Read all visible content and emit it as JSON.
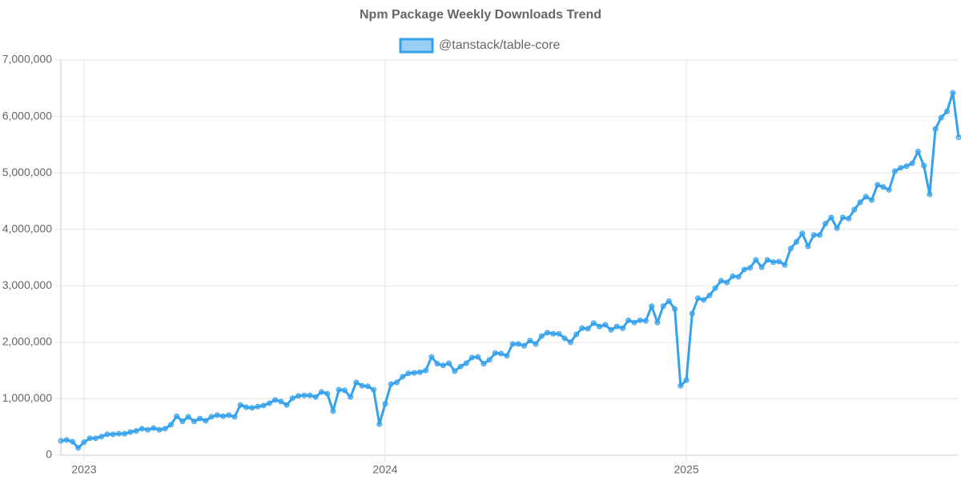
{
  "chart_data": {
    "type": "line",
    "title": "Npm Package Weekly Downloads Trend",
    "categories": [
      null,
      null,
      null,
      null,
      "2023",
      null,
      null,
      null,
      null,
      null,
      null,
      null,
      null,
      null,
      null,
      null,
      null,
      null,
      null,
      null,
      null,
      null,
      null,
      null,
      null,
      null,
      null,
      null,
      null,
      null,
      null,
      null,
      null,
      null,
      null,
      null,
      null,
      null,
      null,
      null,
      null,
      null,
      null,
      null,
      null,
      null,
      null,
      null,
      null,
      null,
      null,
      null,
      null,
      null,
      null,
      null,
      "2024",
      null,
      null,
      null,
      null,
      null,
      null,
      null,
      null,
      null,
      null,
      null,
      null,
      null,
      null,
      null,
      null,
      null,
      null,
      null,
      null,
      null,
      null,
      null,
      null,
      null,
      null,
      null,
      null,
      null,
      null,
      null,
      null,
      null,
      null,
      null,
      null,
      null,
      null,
      null,
      null,
      null,
      null,
      null,
      null,
      null,
      null,
      null,
      null,
      null,
      null,
      null,
      "2025",
      null,
      null,
      null,
      null,
      null,
      null,
      null,
      null,
      null,
      null,
      null,
      null,
      null,
      null,
      null,
      null,
      null,
      null,
      null,
      null,
      null,
      null,
      null,
      null,
      null,
      null,
      null,
      null,
      null,
      null,
      null,
      null,
      null,
      null,
      null,
      null,
      null,
      null,
      null,
      null,
      null,
      null,
      null,
      null,
      null,
      null,
      null
    ],
    "series": [
      {
        "name": "@tanstack/table-core",
        "color": "#36a2eb",
        "fill": "rgba(54,162,235,0.5)",
        "values": [
          255000,
          270000,
          240000,
          130000,
          230000,
          300000,
          300000,
          330000,
          370000,
          370000,
          380000,
          380000,
          410000,
          430000,
          470000,
          450000,
          480000,
          450000,
          470000,
          540000,
          690000,
          600000,
          680000,
          600000,
          650000,
          610000,
          680000,
          710000,
          690000,
          710000,
          680000,
          890000,
          850000,
          840000,
          860000,
          880000,
          920000,
          980000,
          950000,
          890000,
          1010000,
          1050000,
          1060000,
          1060000,
          1030000,
          1120000,
          1090000,
          780000,
          1160000,
          1150000,
          1030000,
          1290000,
          1230000,
          1220000,
          1160000,
          550000,
          910000,
          1260000,
          1290000,
          1390000,
          1450000,
          1460000,
          1470000,
          1500000,
          1740000,
          1620000,
          1590000,
          1630000,
          1490000,
          1570000,
          1630000,
          1730000,
          1740000,
          1620000,
          1690000,
          1810000,
          1800000,
          1760000,
          1970000,
          1970000,
          1940000,
          2030000,
          1970000,
          2110000,
          2170000,
          2150000,
          2150000,
          2070000,
          2000000,
          2140000,
          2250000,
          2240000,
          2340000,
          2280000,
          2310000,
          2220000,
          2280000,
          2250000,
          2390000,
          2350000,
          2390000,
          2380000,
          2640000,
          2350000,
          2640000,
          2730000,
          2590000,
          1230000,
          1330000,
          2510000,
          2780000,
          2750000,
          2830000,
          2960000,
          3090000,
          3060000,
          3170000,
          3160000,
          3290000,
          3320000,
          3460000,
          3330000,
          3460000,
          3420000,
          3430000,
          3370000,
          3660000,
          3780000,
          3930000,
          3700000,
          3900000,
          3900000,
          4100000,
          4210000,
          4020000,
          4210000,
          4190000,
          4350000,
          4480000,
          4580000,
          4520000,
          4790000,
          4750000,
          4700000,
          5030000,
          5090000,
          5120000,
          5170000,
          5380000,
          5130000,
          4620000,
          5780000,
          5980000,
          6090000,
          6420000,
          5630000
        ]
      }
    ],
    "ylim": [
      0,
      7000000
    ],
    "yticks": [
      0,
      {
        "value": 1000000,
        "label": "1,000,000"
      },
      {
        "value": 2000000,
        "label": "2,000,000"
      },
      {
        "value": 3000000,
        "label": "3,000,000"
      },
      {
        "value": 4000000,
        "label": "4,000,000"
      },
      {
        "value": 5000000,
        "label": "5,000,000"
      },
      {
        "value": 6000000,
        "label": "6,000,000"
      },
      {
        "value": 7000000,
        "label": "7,000,000"
      }
    ],
    "grid": true,
    "legend": "top"
  }
}
